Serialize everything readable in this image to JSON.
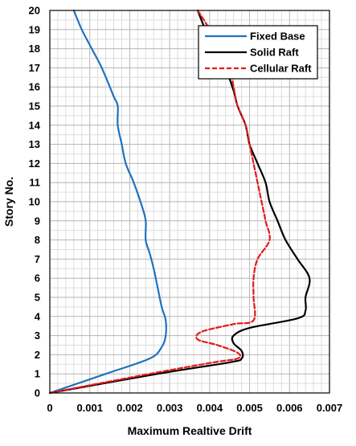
{
  "chart_data": {
    "type": "line",
    "title": "",
    "xlabel": "Maximum Realtive Drift",
    "ylabel": "Story No.",
    "xlim": [
      0,
      0.007
    ],
    "ylim": [
      0,
      20
    ],
    "x_ticks": [
      "0",
      "0.001",
      "0.002",
      "0.003",
      "0.004",
      "0.005",
      "0.006",
      "0.007"
    ],
    "y_ticks": [
      "0",
      "1",
      "2",
      "3",
      "4",
      "5",
      "6",
      "7",
      "8",
      "9",
      "10",
      "11",
      "12",
      "13",
      "14",
      "15",
      "16",
      "17",
      "18",
      "19",
      "20"
    ],
    "grid": true,
    "minor_grid": true,
    "legend_position": "top-right",
    "series": [
      {
        "name": "Fixed Base",
        "color": "#1f72bf",
        "dash": "solid",
        "points": [
          [
            0,
            0
          ],
          [
            0.0014,
            1
          ],
          [
            0.0025,
            1.8
          ],
          [
            0.0028,
            2.4
          ],
          [
            0.0029,
            3
          ],
          [
            0.0029,
            3.8
          ],
          [
            0.0028,
            4.5
          ],
          [
            0.0027,
            5.5
          ],
          [
            0.0026,
            6.5
          ],
          [
            0.0025,
            7.3
          ],
          [
            0.0024,
            8
          ],
          [
            0.0024,
            9
          ],
          [
            0.0023,
            9.8
          ],
          [
            0.0021,
            11
          ],
          [
            0.0019,
            12
          ],
          [
            0.0018,
            13
          ],
          [
            0.0017,
            14
          ],
          [
            0.0017,
            15
          ],
          [
            0.0016,
            15.5
          ],
          [
            0.0013,
            17
          ],
          [
            0.00105,
            18
          ],
          [
            0.0008,
            19
          ],
          [
            0.0006,
            20
          ]
        ]
      },
      {
        "name": "Solid Raft",
        "color": "#000000",
        "dash": "solid",
        "points": [
          [
            0,
            0
          ],
          [
            0.0027,
            1
          ],
          [
            0.0045,
            1.6
          ],
          [
            0.0048,
            1.8
          ],
          [
            0.0048,
            2.2
          ],
          [
            0.0046,
            2.6
          ],
          [
            0.0046,
            3
          ],
          [
            0.005,
            3.4
          ],
          [
            0.0062,
            3.9
          ],
          [
            0.0064,
            4.3
          ],
          [
            0.0064,
            5
          ],
          [
            0.0065,
            6
          ],
          [
            0.0062,
            7
          ],
          [
            0.0059,
            8
          ],
          [
            0.0057,
            9
          ],
          [
            0.0055,
            10
          ],
          [
            0.0054,
            11
          ],
          [
            0.0052,
            12
          ],
          [
            0.005,
            13
          ],
          [
            0.0049,
            14
          ],
          [
            0.0047,
            15
          ],
          [
            0.0046,
            15.8
          ],
          [
            0.0044,
            17
          ],
          [
            0.0042,
            18
          ],
          [
            0.0039,
            19
          ],
          [
            0.0037,
            20
          ]
        ]
      },
      {
        "name": "Cellular Raft",
        "color": "#e31a1a",
        "dash": "dashed",
        "points": [
          [
            0,
            0
          ],
          [
            0.0025,
            1
          ],
          [
            0.0041,
            1.6
          ],
          [
            0.0047,
            1.8
          ],
          [
            0.0047,
            2.1
          ],
          [
            0.0042,
            2.5
          ],
          [
            0.0037,
            2.8
          ],
          [
            0.0038,
            3.2
          ],
          [
            0.0046,
            3.6
          ],
          [
            0.0051,
            3.8
          ],
          [
            0.0051,
            5
          ],
          [
            0.0051,
            6
          ],
          [
            0.0052,
            7
          ],
          [
            0.0055,
            8
          ],
          [
            0.0054,
            9
          ],
          [
            0.0053,
            10
          ],
          [
            0.0052,
            11
          ],
          [
            0.0051,
            12
          ],
          [
            0.005,
            13
          ],
          [
            0.0049,
            14
          ],
          [
            0.0047,
            15
          ],
          [
            0.0046,
            16
          ],
          [
            0.0045,
            17
          ],
          [
            0.0042,
            18
          ],
          [
            0.004,
            19
          ],
          [
            0.0037,
            20
          ]
        ]
      }
    ]
  }
}
